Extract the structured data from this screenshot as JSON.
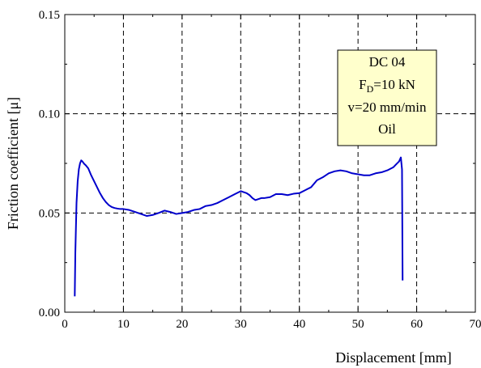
{
  "chart_data": {
    "type": "line",
    "xlabel": "Displacement [mm]",
    "ylabel": "Friction coefficient [μ]",
    "xlim": [
      0,
      70
    ],
    "ylim": [
      0,
      0.15
    ],
    "x_ticks": [
      0,
      10,
      20,
      30,
      40,
      50,
      60,
      70
    ],
    "y_ticks": [
      0.0,
      0.05,
      0.1,
      0.15
    ],
    "x_tick_labels": [
      "0",
      "10",
      "20",
      "30",
      "40",
      "50",
      "60",
      "70"
    ],
    "y_tick_labels": [
      "0.00",
      "0.05",
      "0.10",
      "0.15"
    ],
    "grid": true,
    "legend_position": "top-right",
    "annotation": {
      "line1": "DC 04",
      "line2_main": "F",
      "line2_sub": "D",
      "line2_rest": "=10 kN",
      "line3": "v=20 mm/min",
      "line4": "Oil"
    },
    "series": [
      {
        "color": "#0000cc",
        "x": [
          1.7,
          1.8,
          2.0,
          2.2,
          2.4,
          2.6,
          2.8,
          3.0,
          3.3,
          3.6,
          4.0,
          4.5,
          5.0,
          5.5,
          6.0,
          6.5,
          7.0,
          7.5,
          8.0,
          8.5,
          9.0,
          9.5,
          10.0,
          11.0,
          12.0,
          13.0,
          14.0,
          15.0,
          16.0,
          17.0,
          18.0,
          19.0,
          20.0,
          21.0,
          22.0,
          23.0,
          24.0,
          25.0,
          26.0,
          27.0,
          28.0,
          29.0,
          30.0,
          31.0,
          31.5,
          32.0,
          32.5,
          33.0,
          33.5,
          34.0,
          35.0,
          36.0,
          37.0,
          38.0,
          39.0,
          40.0,
          41.0,
          42.0,
          43.0,
          44.0,
          45.0,
          46.0,
          47.0,
          48.0,
          49.0,
          50.0,
          51.0,
          52.0,
          53.0,
          54.0,
          55.0,
          56.0,
          56.5,
          57.0,
          57.3,
          57.5,
          57.6
        ],
        "y": [
          0.008,
          0.03,
          0.055,
          0.066,
          0.072,
          0.075,
          0.0765,
          0.076,
          0.0748,
          0.074,
          0.0725,
          0.069,
          0.066,
          0.063,
          0.06,
          0.0575,
          0.0555,
          0.054,
          0.053,
          0.0525,
          0.0522,
          0.052,
          0.052,
          0.0515,
          0.0505,
          0.0495,
          0.0485,
          0.049,
          0.05,
          0.0512,
          0.0505,
          0.0495,
          0.05,
          0.0505,
          0.0515,
          0.052,
          0.0535,
          0.054,
          0.055,
          0.0565,
          0.058,
          0.0595,
          0.061,
          0.06,
          0.059,
          0.0575,
          0.0565,
          0.057,
          0.0575,
          0.0575,
          0.058,
          0.0595,
          0.0595,
          0.059,
          0.0597,
          0.06,
          0.0615,
          0.063,
          0.0665,
          0.068,
          0.07,
          0.071,
          0.0715,
          0.071,
          0.07,
          0.0695,
          0.069,
          0.069,
          0.07,
          0.0705,
          0.0715,
          0.073,
          0.0745,
          0.076,
          0.078,
          0.072,
          0.016
        ]
      }
    ]
  }
}
